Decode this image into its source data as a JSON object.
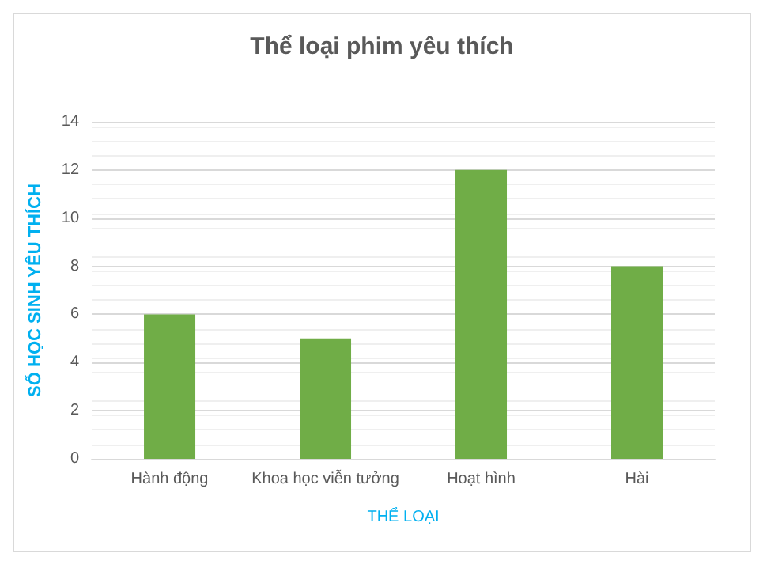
{
  "chart_data": {
    "type": "bar",
    "title": "Thể loại phim yêu thích",
    "xlabel": "THỂ LOẠI",
    "ylabel": "SỐ HỌC SINH YÊU THÍCH",
    "categories": [
      "Hành động",
      "Khoa học viễn tưởng",
      "Hoạt hình",
      "Hài"
    ],
    "values": [
      6,
      5,
      12,
      8
    ],
    "color": "#70ad47",
    "ylim": [
      0,
      14
    ],
    "yticks": [
      0,
      2,
      4,
      6,
      8,
      10,
      12,
      14
    ],
    "grid": "y"
  }
}
